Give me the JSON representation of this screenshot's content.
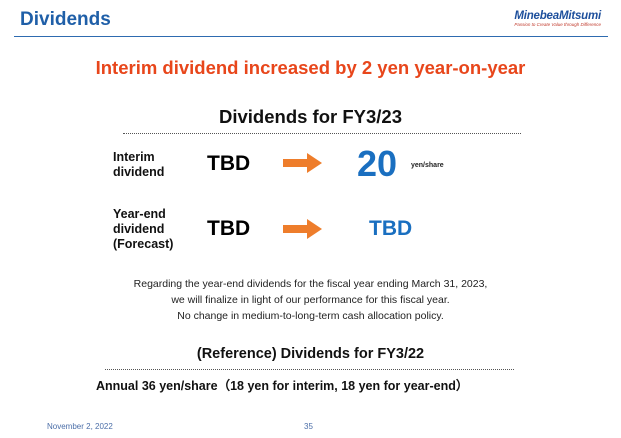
{
  "header": {
    "title": "Dividends",
    "logo": {
      "name": "MinebeaMitsumi",
      "tagline": "Passion to Create Value through Difference"
    }
  },
  "headline": "Interim dividend increased by 2 yen year-on-year",
  "section": {
    "title": "Dividends for FY3/23",
    "rows": [
      {
        "label_lines": [
          "Interim",
          "dividend"
        ],
        "previous": "TBD",
        "current": "20",
        "unit": "yen/share"
      },
      {
        "label_lines": [
          "Year-end",
          "dividend",
          "(Forecast)"
        ],
        "previous": "TBD",
        "current": "TBD"
      }
    ]
  },
  "note_lines": [
    "Regarding the year-end dividends for the fiscal year ending March 31, 2023,",
    "we will finalize in light of our performance for this fiscal year.",
    "No change in medium-to-long-term cash allocation policy."
  ],
  "reference": {
    "title": "(Reference) Dividends for FY3/22",
    "annual": "Annual 36 yen/share（18 yen for interim, 18 yen for year-end）"
  },
  "footer": {
    "date": "November 2, 2022",
    "page": "35"
  },
  "colors": {
    "brand_blue": "#1f5fa8",
    "headline_red": "#e8461b",
    "value_blue": "#1a6fc0",
    "arrow_orange": "#ee7d2b"
  }
}
